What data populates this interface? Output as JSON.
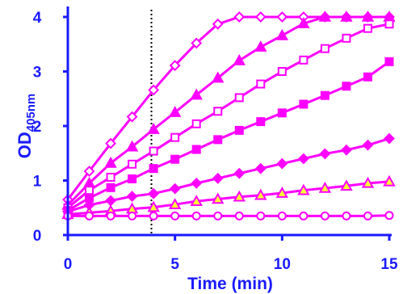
{
  "chart_data": {
    "type": "line",
    "xlabel": "Time (min)",
    "ylabel_main": "OD",
    "ylabel_sub": "405nm",
    "xlim": [
      0,
      15
    ],
    "ylim": [
      0,
      4
    ],
    "xticks": [
      0,
      5,
      10,
      15
    ],
    "yticks": [
      0,
      1,
      2,
      3,
      4
    ],
    "grid": false,
    "reference_line_x": 3.9,
    "colors": {
      "series": "#ff00ff",
      "axes": "#1a1aff",
      "triangle_fill": "#ffff33"
    },
    "x": [
      0,
      1,
      2,
      3,
      4,
      5,
      6,
      7,
      8,
      9,
      10,
      11,
      12,
      13,
      14,
      15
    ],
    "series": [
      {
        "marker": "diamond-open",
        "values": [
          0.65,
          1.17,
          1.68,
          2.17,
          2.66,
          3.11,
          3.52,
          3.87,
          4.0,
          4.0,
          4.0,
          4.0,
          4.0,
          4.0,
          4.0,
          4.0
        ]
      },
      {
        "marker": "triangle-filled",
        "values": [
          0.55,
          0.95,
          1.32,
          1.62,
          1.94,
          2.25,
          2.57,
          2.88,
          3.2,
          3.45,
          3.66,
          3.88,
          4.0,
          4.0,
          4.0,
          4.0
        ]
      },
      {
        "marker": "square-open",
        "values": [
          0.5,
          0.82,
          1.06,
          1.3,
          1.54,
          1.79,
          2.04,
          2.27,
          2.52,
          2.77,
          3.0,
          3.21,
          3.42,
          3.61,
          3.79,
          3.87
        ]
      },
      {
        "marker": "square-filled",
        "values": [
          0.45,
          0.68,
          0.87,
          1.03,
          1.22,
          1.39,
          1.57,
          1.75,
          1.92,
          2.08,
          2.24,
          2.4,
          2.56,
          2.73,
          2.9,
          3.18
        ]
      },
      {
        "marker": "diamond-filled",
        "values": [
          0.43,
          0.55,
          0.63,
          0.71,
          0.76,
          0.85,
          0.95,
          1.04,
          1.13,
          1.22,
          1.31,
          1.4,
          1.49,
          1.56,
          1.65,
          1.77
        ]
      },
      {
        "marker": "triangle-yellow",
        "values": [
          0.38,
          0.41,
          0.44,
          0.48,
          0.51,
          0.56,
          0.62,
          0.66,
          0.7,
          0.73,
          0.77,
          0.82,
          0.86,
          0.9,
          0.95,
          0.98
        ]
      },
      {
        "marker": "circle-open",
        "values": [
          0.35,
          0.35,
          0.35,
          0.35,
          0.35,
          0.35,
          0.35,
          0.35,
          0.35,
          0.35,
          0.35,
          0.35,
          0.35,
          0.35,
          0.35,
          0.36
        ]
      }
    ]
  }
}
